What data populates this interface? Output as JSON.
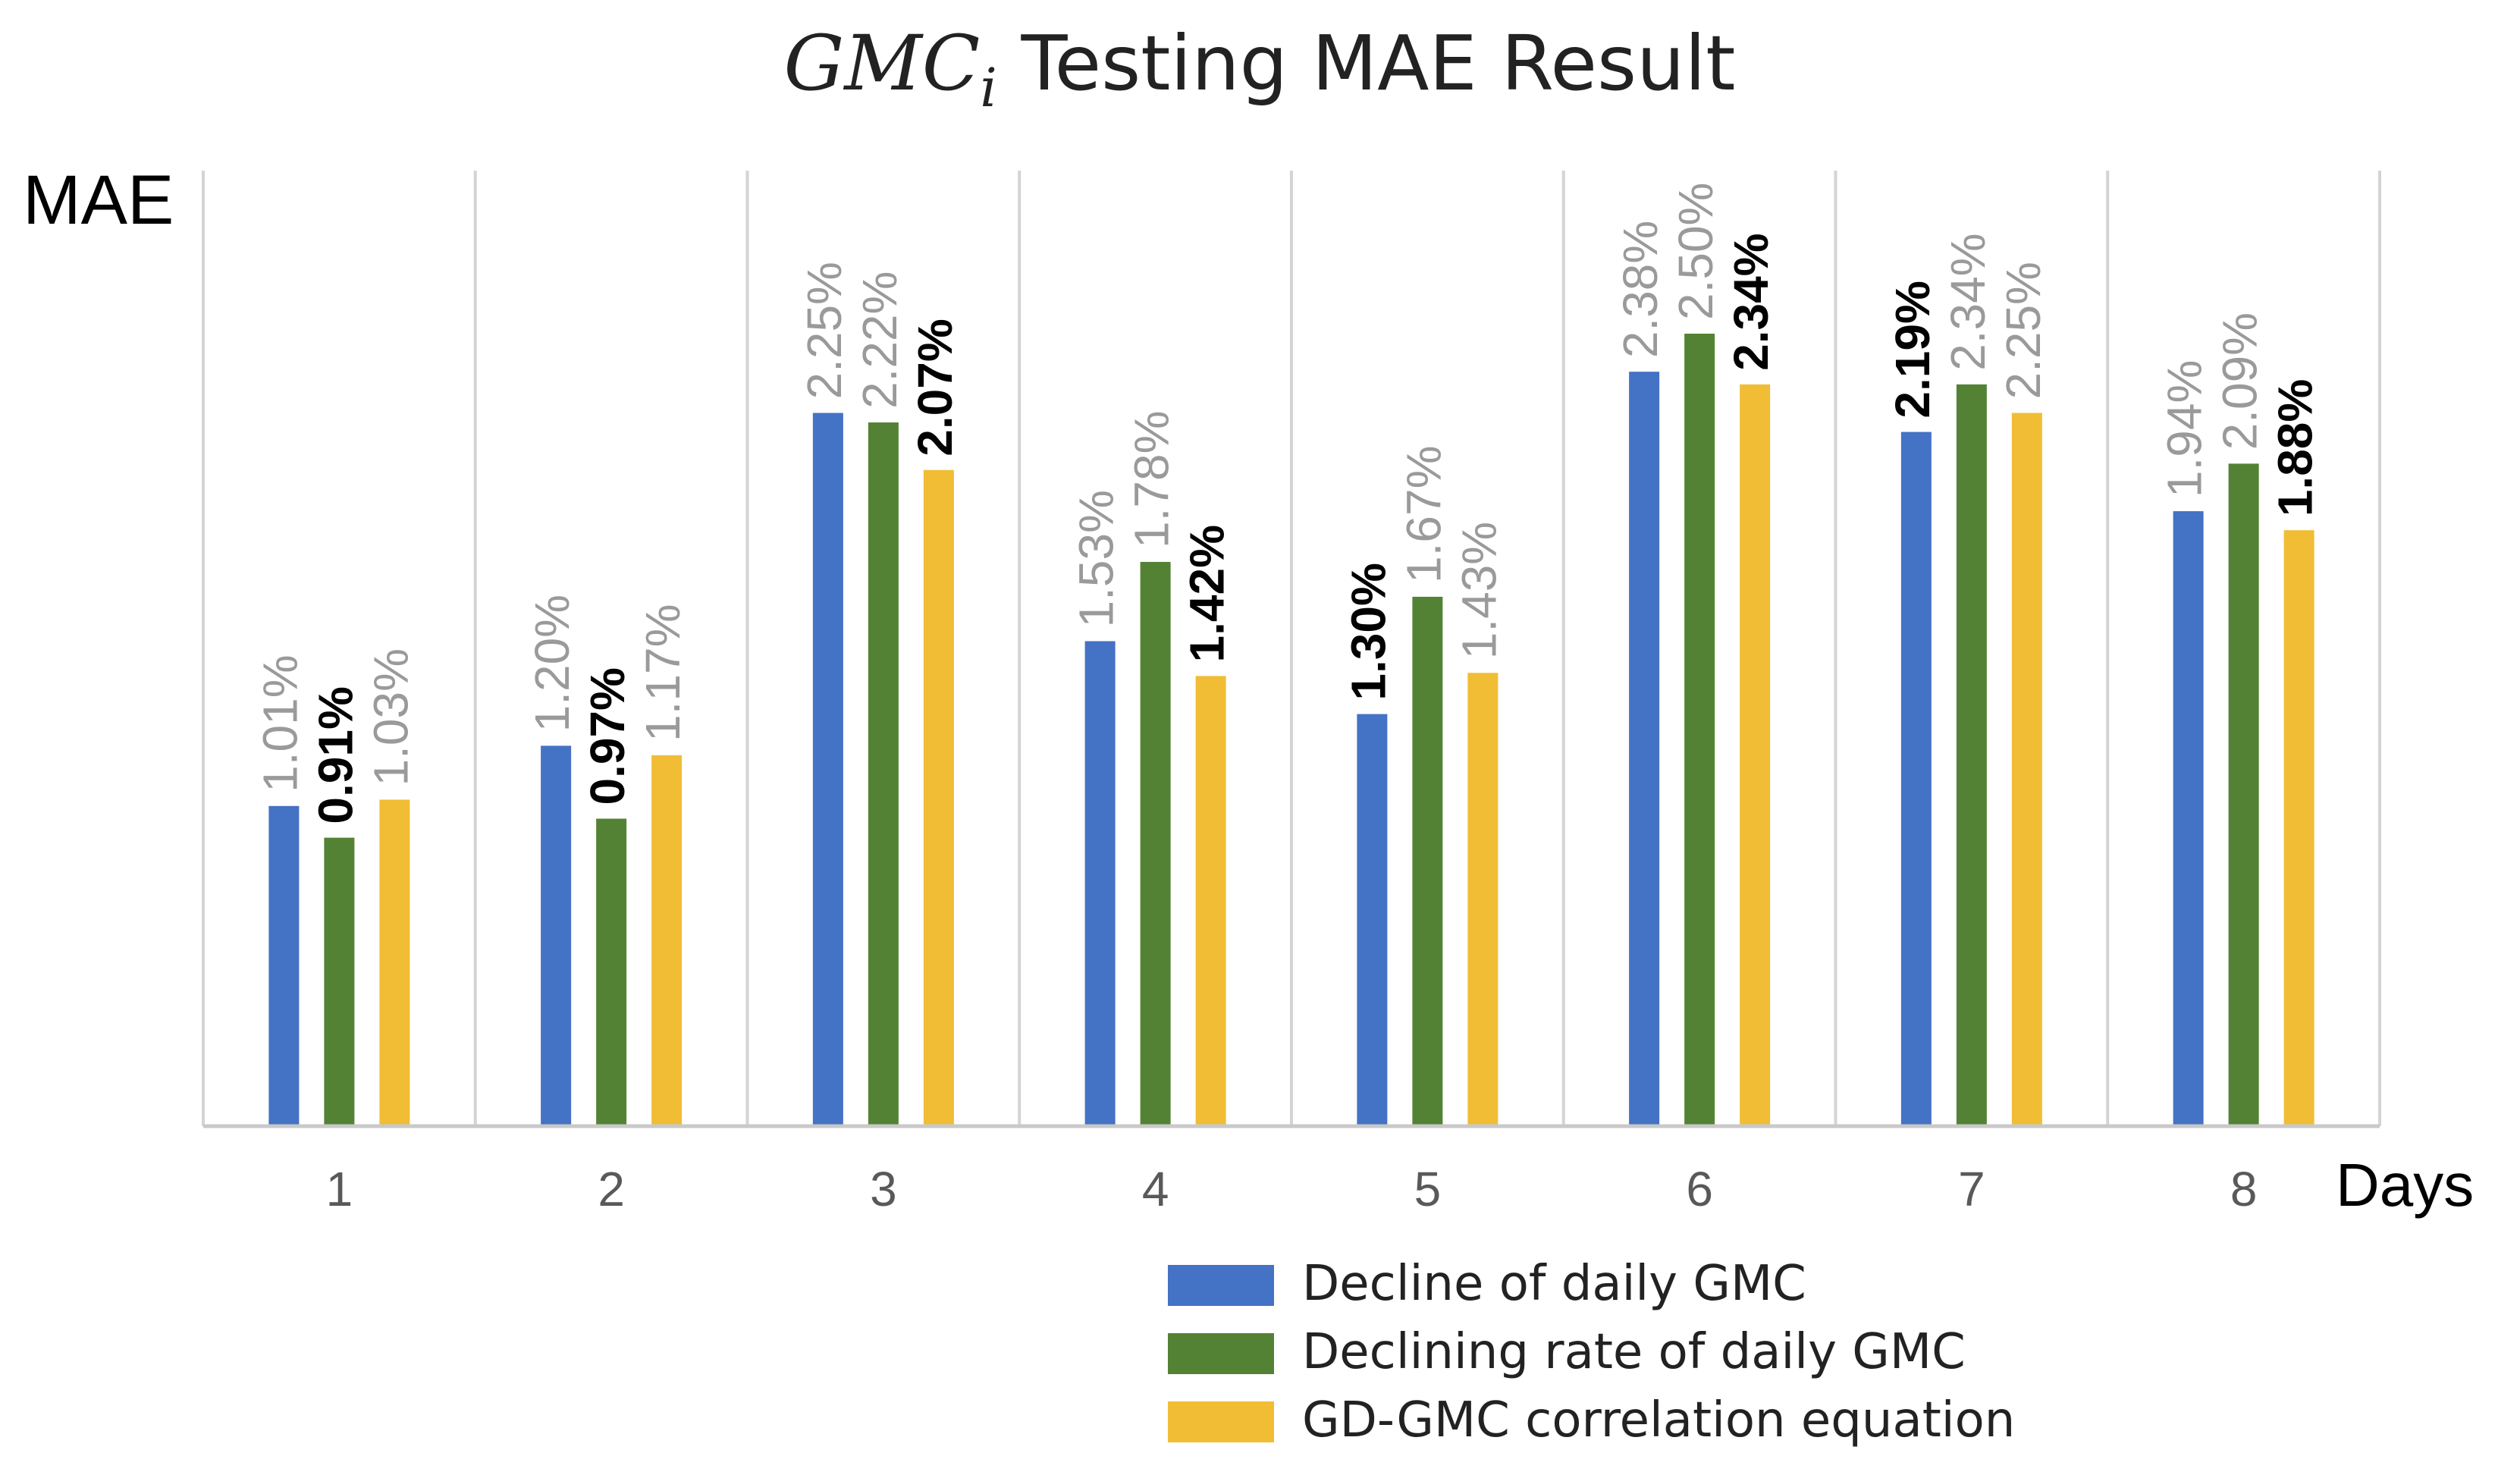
{
  "chart_data": {
    "type": "bar",
    "title_prefix": "GMC",
    "title_subscript": "i",
    "title_suffix": " Testing MAE Result",
    "ylabel": "MAE",
    "xlabel": "Days",
    "ylim": [
      0,
      3.0
    ],
    "grid": false,
    "categories": [
      "1",
      "2",
      "3",
      "4",
      "5",
      "6",
      "7",
      "8"
    ],
    "series": [
      {
        "name": "Decline of daily GMC",
        "color": "#4472C4",
        "values": [
          1.01,
          1.2,
          2.25,
          1.53,
          1.3,
          2.38,
          2.19,
          1.94
        ],
        "labels": [
          "1.01%",
          "1.20%",
          "2.25%",
          "1.53%",
          "1.30%",
          "2.38%",
          "2.19%",
          "1.94%"
        ]
      },
      {
        "name": "Declining rate of daily GMC",
        "color": "#548235",
        "values": [
          0.91,
          0.97,
          2.22,
          1.78,
          1.67,
          2.5,
          2.34,
          2.09
        ],
        "labels": [
          "0.91%",
          "0.97%",
          "2.22%",
          "1.78%",
          "1.67%",
          "2.50%",
          "2.34%",
          "2.09%"
        ]
      },
      {
        "name": "GD-GMC correlation equation",
        "color": "#F0BD35",
        "values": [
          1.03,
          1.17,
          2.07,
          1.42,
          1.43,
          2.34,
          2.25,
          1.88
        ],
        "labels": [
          "1.03%",
          "1.17%",
          "2.07%",
          "1.42%",
          "1.43%",
          "2.34%",
          "2.25%",
          "1.88%"
        ]
      }
    ],
    "best_series_index": [
      1,
      1,
      2,
      2,
      0,
      2,
      0,
      2
    ],
    "legend_position": "bottom-right"
  }
}
